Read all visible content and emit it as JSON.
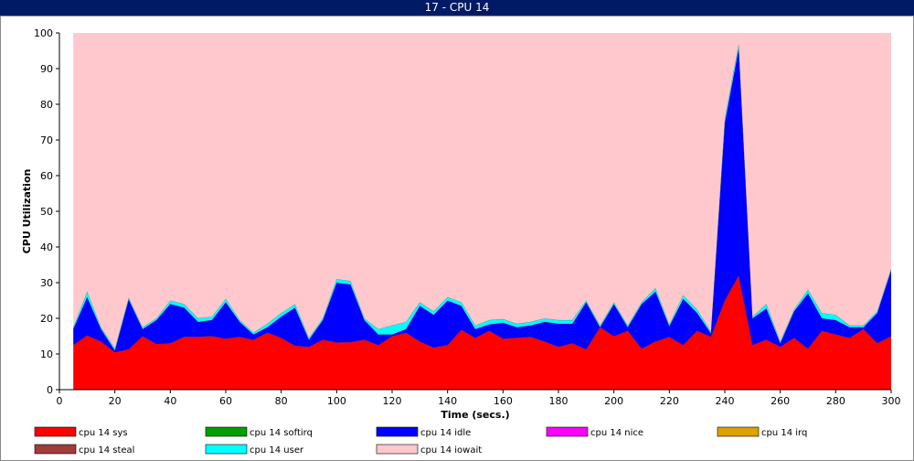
{
  "window": {
    "title": "17 - CPU 14"
  },
  "chart_data": {
    "type": "area",
    "stacked": true,
    "xlabel": "Time (secs.)",
    "ylabel": "CPU Utilization",
    "xlim": [
      0,
      300
    ],
    "ylim": [
      0,
      100
    ],
    "xticks": [
      0,
      20,
      40,
      60,
      80,
      100,
      120,
      140,
      160,
      180,
      200,
      220,
      240,
      260,
      280,
      300
    ],
    "yticks": [
      0,
      10,
      20,
      30,
      40,
      50,
      60,
      70,
      80,
      90,
      100
    ],
    "x": [
      5,
      10,
      15,
      20,
      25,
      30,
      35,
      40,
      45,
      50,
      55,
      60,
      65,
      70,
      75,
      80,
      85,
      90,
      95,
      100,
      105,
      110,
      115,
      120,
      125,
      130,
      135,
      140,
      145,
      150,
      155,
      160,
      165,
      170,
      175,
      180,
      185,
      190,
      195,
      200,
      205,
      210,
      215,
      220,
      225,
      230,
      235,
      240,
      245,
      250,
      255,
      260,
      265,
      270,
      275,
      280,
      285,
      290,
      295,
      300
    ],
    "series": [
      {
        "name": "cpu 14 sys",
        "color": "#ff0000",
        "values": [
          12.5,
          15.2,
          13.5,
          10.5,
          11.3,
          15.0,
          12.8,
          13.0,
          14.8,
          14.8,
          15.0,
          14.3,
          14.8,
          14.0,
          16.0,
          14.5,
          12.3,
          12.0,
          14.0,
          13.2,
          13.3,
          14.0,
          12.5,
          15.0,
          16.0,
          13.5,
          11.8,
          12.5,
          16.8,
          14.5,
          16.5,
          14.3,
          14.5,
          14.8,
          13.5,
          12.0,
          13.0,
          11.3,
          17.5,
          15.0,
          16.5,
          11.5,
          13.5,
          14.8,
          12.5,
          16.5,
          14.8,
          25.0,
          32.0,
          12.5,
          14.0,
          12.0,
          14.5,
          11.5,
          16.5,
          15.5,
          14.5,
          17.0,
          13.0,
          15.0
        ]
      },
      {
        "name": "cpu 14 softirq",
        "color": "#00a000",
        "values": [
          0,
          0,
          0,
          0,
          0,
          0,
          0,
          0,
          0,
          0,
          0,
          0,
          0,
          0,
          0,
          0,
          0,
          0,
          0,
          0,
          0,
          0,
          0,
          0,
          0,
          0,
          0,
          0,
          0,
          0,
          0,
          0,
          0,
          0,
          0,
          0,
          0,
          0,
          0,
          0,
          0,
          0,
          0,
          0,
          0,
          0,
          0,
          0,
          0,
          0,
          0,
          0,
          0,
          0,
          0,
          0,
          0,
          0,
          0,
          0
        ]
      },
      {
        "name": "cpu 14 idle",
        "color": "#0000ff",
        "values": [
          4.5,
          10.8,
          3.5,
          0.5,
          14.0,
          2.0,
          6.7,
          11.0,
          8.2,
          4.2,
          4.5,
          10.2,
          4.2,
          1.5,
          1.5,
          6.0,
          10.7,
          2.0,
          5.5,
          16.8,
          16.2,
          5.5,
          3.0,
          0.5,
          1.0,
          10.0,
          9.2,
          12.5,
          6.7,
          2.5,
          1.8,
          4.5,
          3.0,
          3.2,
          5.5,
          6.5,
          5.5,
          13.2,
          0,
          9.0,
          1.0,
          12.5,
          14.0,
          3.0,
          13.0,
          5.0,
          1.0,
          49.8,
          63.7,
          7.5,
          8.8,
          1.0,
          7.5,
          15.5,
          3.5,
          4.0,
          3.0,
          0.5,
          8.5,
          18.5
        ]
      },
      {
        "name": "cpu 14 nice",
        "color": "#ff00ff",
        "values": [
          0,
          0,
          0,
          0,
          0,
          0,
          0,
          0,
          0,
          0,
          0,
          0,
          0,
          0,
          0,
          0,
          0,
          0,
          0,
          0,
          0,
          0,
          0,
          0,
          0,
          0,
          0,
          0,
          0,
          0,
          0,
          0,
          0,
          0,
          0,
          0,
          0,
          0,
          0,
          0,
          0,
          0,
          0,
          0,
          0,
          0,
          0,
          0,
          0,
          0,
          0,
          0,
          0,
          0,
          0,
          0,
          0,
          0,
          0,
          0
        ]
      },
      {
        "name": "cpu 14 irq",
        "color": "#e0a000",
        "values": [
          0,
          0,
          0,
          0,
          0,
          0,
          0,
          0,
          0,
          0,
          0,
          0,
          0,
          0,
          0,
          0,
          0,
          0,
          0,
          0,
          0,
          0,
          0,
          0,
          0,
          0,
          0,
          0,
          0,
          0,
          0,
          0,
          0,
          0,
          0,
          0,
          0,
          0,
          0,
          0,
          0,
          0,
          0,
          0,
          0,
          0,
          0,
          0,
          0,
          0,
          0,
          0,
          0,
          0,
          0,
          0,
          0,
          0,
          0,
          0
        ]
      },
      {
        "name": "cpu 14 steal",
        "color": "#a03c3c",
        "values": [
          0,
          0,
          0,
          0,
          0,
          0,
          0,
          0,
          0,
          0,
          0,
          0,
          0,
          0,
          0,
          0,
          0,
          0,
          0,
          0,
          0,
          0,
          0,
          0,
          0,
          0,
          0,
          0,
          0,
          0,
          0,
          0,
          0,
          0,
          0,
          0,
          0,
          0,
          0,
          0,
          0,
          0,
          0,
          0,
          0,
          0,
          0,
          0,
          0,
          0,
          0,
          0,
          0,
          0,
          0,
          0,
          0,
          0,
          0,
          0
        ]
      },
      {
        "name": "cpu 14 user",
        "color": "#00ffff",
        "values": [
          0.5,
          1.5,
          0.5,
          0.5,
          0.5,
          0.5,
          0.5,
          1.0,
          1.0,
          1.0,
          1.0,
          1.0,
          0.5,
          0.5,
          1.0,
          1.0,
          1.0,
          0.5,
          0.5,
          1.0,
          1.0,
          0.5,
          1.5,
          2.5,
          2.0,
          1.0,
          1.0,
          1.0,
          1.0,
          1.0,
          1.2,
          1.0,
          1.0,
          1.0,
          1.0,
          1.0,
          1.0,
          0.5,
          0.5,
          0.5,
          0.5,
          0.5,
          1.0,
          0.5,
          1.0,
          1.0,
          0.5,
          1.2,
          1.3,
          0.5,
          1.2,
          0.5,
          0.5,
          1.0,
          1.5,
          1.5,
          0.5,
          0.5,
          0.5,
          0.5
        ]
      },
      {
        "name": "cpu 14 iowait",
        "color": "#ffc8cc",
        "values": [
          82.5,
          72.5,
          82.5,
          88.5,
          74.2,
          82.5,
          80.0,
          75.0,
          76.0,
          80.0,
          79.5,
          74.5,
          80.5,
          84.0,
          81.5,
          78.5,
          76.0,
          85.5,
          80.0,
          69.0,
          69.5,
          80.0,
          83.0,
          82.0,
          81.0,
          75.5,
          78.0,
          74.0,
          75.5,
          82.0,
          80.5,
          80.2,
          81.5,
          81.0,
          80.0,
          80.5,
          80.5,
          75.0,
          82.0,
          75.5,
          82.0,
          75.5,
          71.5,
          81.7,
          73.5,
          77.5,
          83.7,
          24.0,
          3.0,
          79.5,
          76.0,
          86.5,
          77.5,
          72.0,
          78.5,
          79.0,
          82.0,
          82.0,
          78.0,
          66.0
        ]
      }
    ]
  }
}
